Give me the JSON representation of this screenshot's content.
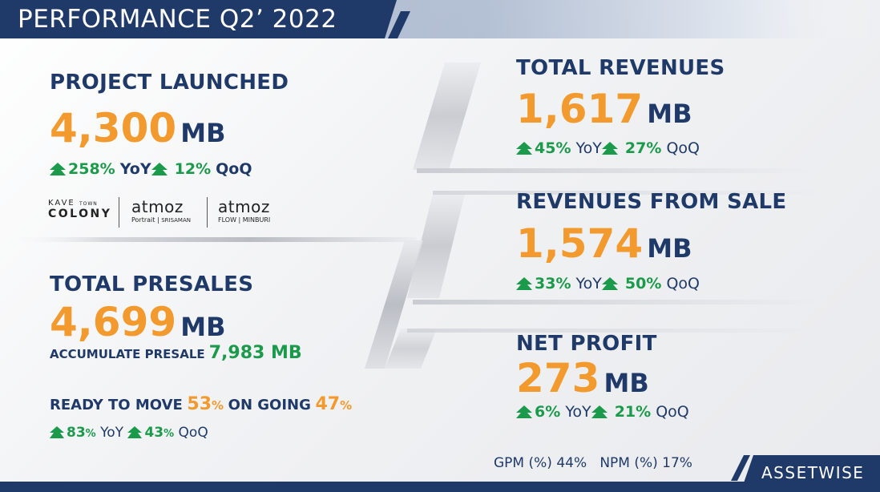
{
  "header": {
    "title": "PERFORMANCE Q2’ 2022"
  },
  "project_launched": {
    "title": "PROJECT LAUNCHED",
    "value": "4,300",
    "unit": "MB",
    "yoy_value": "258%",
    "yoy_label": "YoY",
    "qoq_value": "12%",
    "qoq_label": "QoQ"
  },
  "logos": {
    "kave_top": "KAVE",
    "kave_small": "TOWN",
    "kave_bottom": "COLONY",
    "atmoz1_name": "atmoz",
    "atmoz1_sub1": "Portrait",
    "atmoz1_sub2": "SRISAMAN",
    "atmoz2_name": "atmoz",
    "atmoz2_sub1": "FLOW",
    "atmoz2_sub2": "MINBURI"
  },
  "total_presales": {
    "title": "TOTAL PRESALES",
    "value": "4,699",
    "unit": "MB",
    "accum_label": "ACCUMULATE PRESALE",
    "accum_value": "7,983 MB",
    "ready_label": "READY TO MOVE",
    "ready_value": "53",
    "ongoing_label": "ON GOING",
    "ongoing_value": "47",
    "pct": "%",
    "yoy_value": "83",
    "yoy_label": "YoY",
    "qoq_value": "43",
    "qoq_label": "QoQ"
  },
  "total_revenues": {
    "title": "TOTAL REVENUES",
    "value": "1,617",
    "unit": "MB",
    "yoy_value": "45%",
    "yoy_label": "YoY",
    "qoq_value": "27%",
    "qoq_label": "QoQ"
  },
  "revenues_sale": {
    "title": "REVENUES FROM SALE",
    "value": "1,574",
    "unit": "MB",
    "yoy_value": "33%",
    "yoy_label": "YoY",
    "qoq_value": "50%",
    "qoq_label": "QoQ"
  },
  "net_profit": {
    "title": "NET PROFIT",
    "value": "273",
    "unit": "MB",
    "yoy_value": "6%",
    "yoy_label": "YoY",
    "qoq_value": "21%",
    "qoq_label": "QoQ"
  },
  "margins": {
    "text": "GPM (%) 44%   NPM (%) 17%"
  },
  "brand": {
    "name": "ASSETWISE"
  },
  "colors": {
    "navy": "#1f3a68",
    "orange": "#f29a2e",
    "green": "#1c9a4b"
  },
  "icons": {
    "up_arrow": "tree-up-arrow-icon"
  }
}
